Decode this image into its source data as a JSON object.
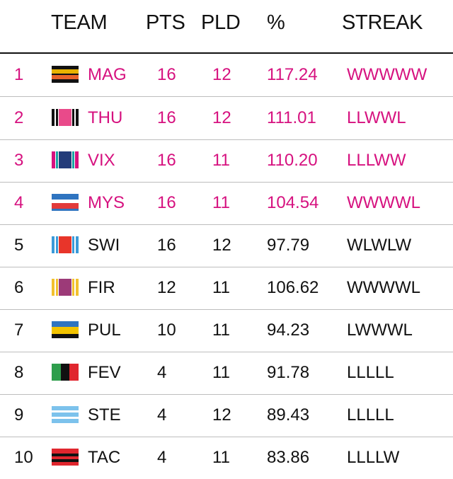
{
  "headers": {
    "team": "TEAM",
    "pts": "PTS",
    "pld": "PLD",
    "pct": "%",
    "streak": "STREAK"
  },
  "highlight_color": "#d6117f",
  "rows": [
    {
      "rank": "1",
      "team": "MAG",
      "pts": "16",
      "pld": "12",
      "pct": "117.24",
      "streak": "WWWWW",
      "highlight": true,
      "flag": "magpies-flag"
    },
    {
      "rank": "2",
      "team": "THU",
      "pts": "16",
      "pld": "12",
      "pct": "111.01",
      "streak": "LLWWL",
      "highlight": true,
      "flag": "thunderbirds-flag"
    },
    {
      "rank": "3",
      "team": "VIX",
      "pts": "16",
      "pld": "11",
      "pct": "110.20",
      "streak": "LLLWW",
      "highlight": true,
      "flag": "vixens-flag"
    },
    {
      "rank": "4",
      "team": "MYS",
      "pts": "16",
      "pld": "11",
      "pct": "104.54",
      "streak": "WWWWL",
      "highlight": true,
      "flag": "mystics-flag"
    },
    {
      "rank": "5",
      "team": "SWI",
      "pts": "16",
      "pld": "12",
      "pct": "97.79",
      "streak": "WLWLW",
      "highlight": false,
      "flag": "swifts-flag"
    },
    {
      "rank": "6",
      "team": "FIR",
      "pts": "12",
      "pld": "11",
      "pct": "106.62",
      "streak": "WWWWL",
      "highlight": false,
      "flag": "firebirds-flag"
    },
    {
      "rank": "7",
      "team": "PUL",
      "pts": "10",
      "pld": "11",
      "pct": "94.23",
      "streak": "LWWWL",
      "highlight": false,
      "flag": "pulse-flag"
    },
    {
      "rank": "8",
      "team": "FEV",
      "pts": "4",
      "pld": "11",
      "pct": "91.78",
      "streak": "LLLLL",
      "highlight": false,
      "flag": "fever-flag"
    },
    {
      "rank": "9",
      "team": "STE",
      "pts": "4",
      "pld": "12",
      "pct": "89.43",
      "streak": "LLLLL",
      "highlight": false,
      "flag": "steel-flag"
    },
    {
      "rank": "10",
      "team": "TAC",
      "pts": "4",
      "pld": "11",
      "pct": "83.86",
      "streak": "LLLLW",
      "highlight": false,
      "flag": "tactix-flag"
    }
  ]
}
